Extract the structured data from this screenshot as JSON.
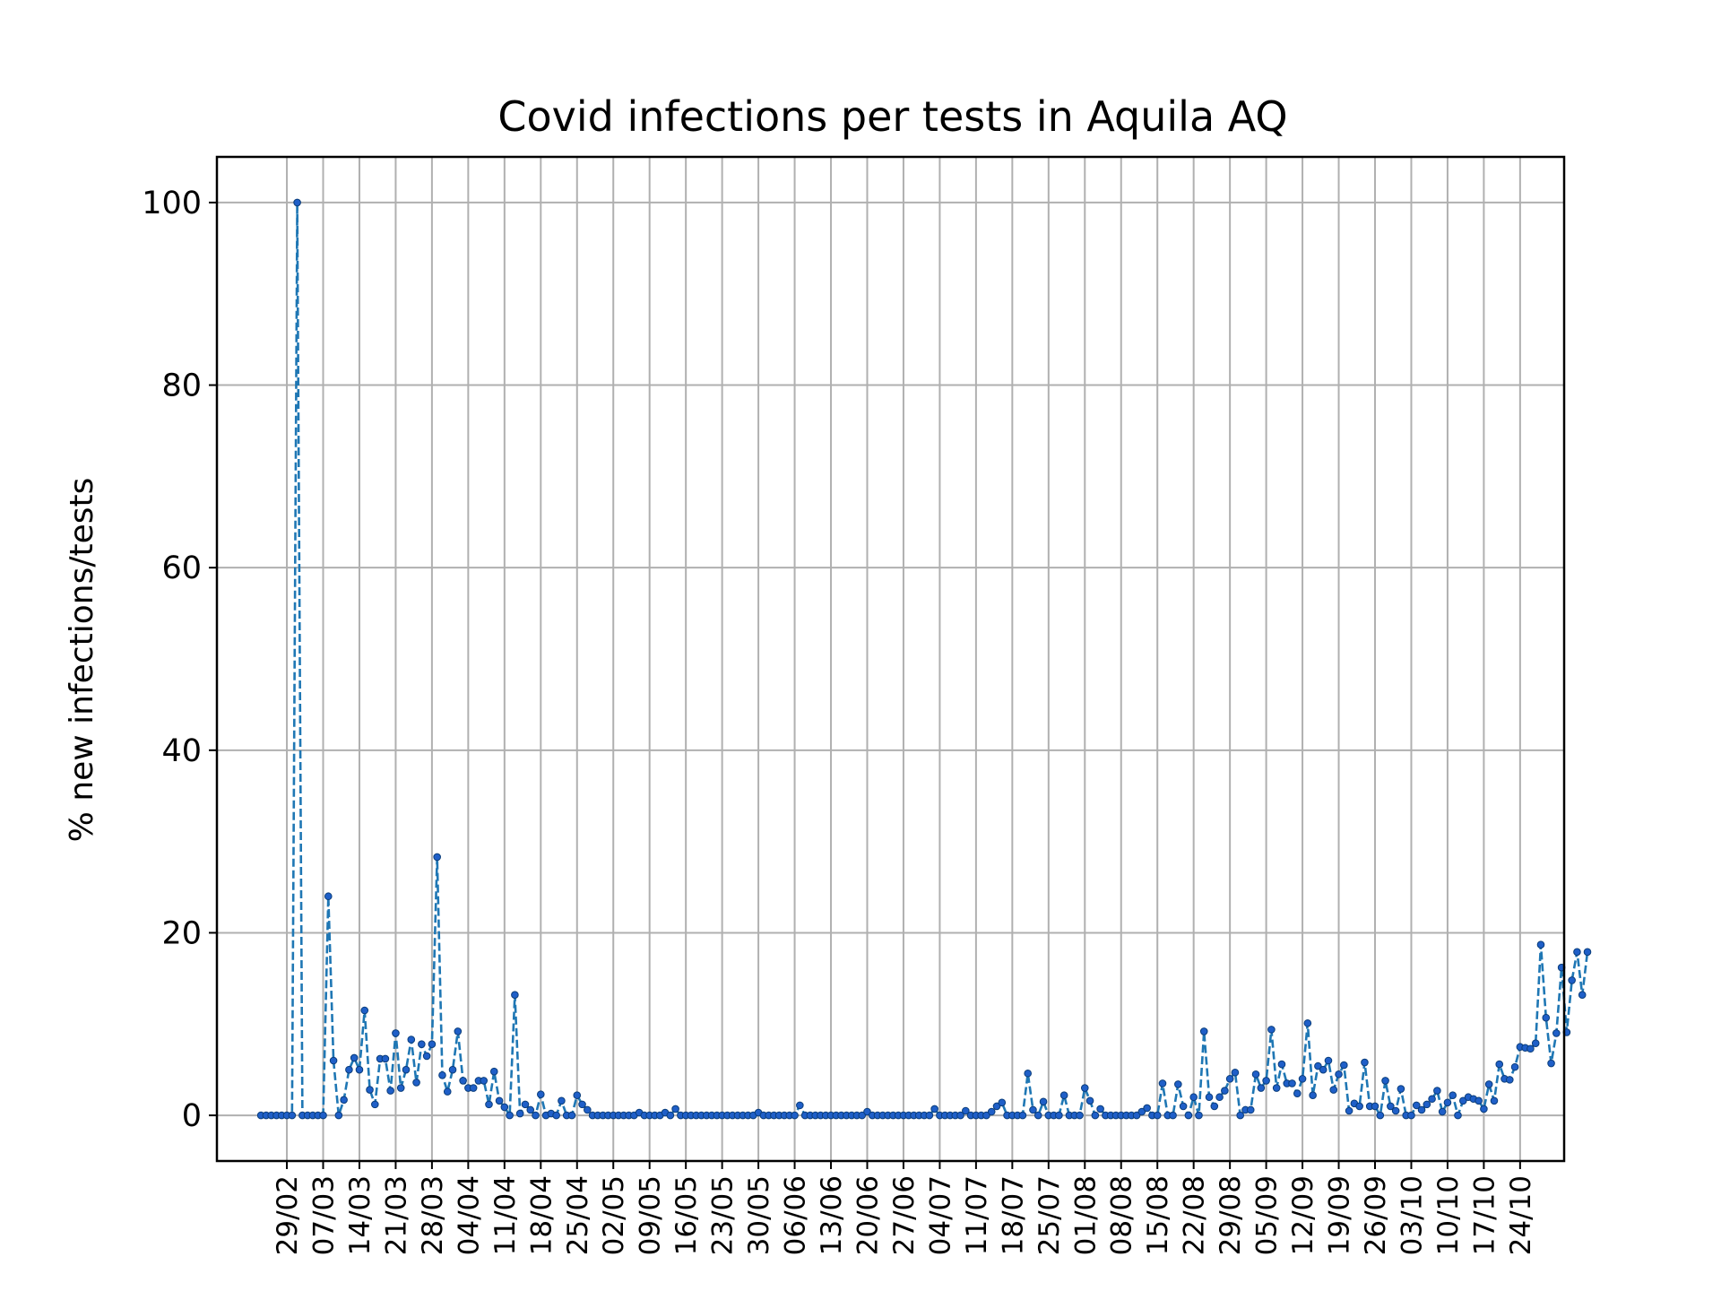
{
  "chart_data": {
    "type": "line",
    "title": "Covid infections per tests in Aquila AQ",
    "xlabel": "",
    "ylabel": "% new infections/tests",
    "ylim": [
      -5,
      105
    ],
    "yticks": [
      0,
      20,
      40,
      60,
      80,
      100
    ],
    "grid": true,
    "line_style": "dashed",
    "marker": "dot",
    "colors": {
      "line": "#1f77b4",
      "marker": "#1f5fc8",
      "grid": "#b0b0b0"
    },
    "x_start_date": "2020-02-24",
    "x_end_date": "2020-10-24",
    "xticks": [
      "29/02",
      "07/03",
      "14/03",
      "21/03",
      "28/03",
      "04/04",
      "11/04",
      "18/04",
      "25/04",
      "02/05",
      "09/05",
      "16/05",
      "23/05",
      "30/05",
      "06/06",
      "13/06",
      "20/06",
      "27/06",
      "04/07",
      "11/07",
      "18/07",
      "25/07",
      "01/08",
      "08/08",
      "15/08",
      "22/08",
      "29/08",
      "05/09",
      "12/09",
      "19/09",
      "26/09",
      "03/10",
      "10/10",
      "17/10",
      "24/10"
    ],
    "series": [
      {
        "name": "",
        "values": [
          0,
          0,
          0,
          0,
          0,
          0,
          0,
          100,
          0,
          0,
          0,
          0,
          0,
          24,
          6,
          0,
          1.7,
          5,
          6.3,
          5,
          11.5,
          2.8,
          1.2,
          6.2,
          6.2,
          2.7,
          9,
          3,
          5,
          8.3,
          3.6,
          7.8,
          6.5,
          7.8,
          28.3,
          4.4,
          2.6,
          5,
          9.2,
          3.8,
          3,
          3,
          3.8,
          3.8,
          1.2,
          4.8,
          1.6,
          0.9,
          0,
          13.2,
          0.2,
          1.2,
          0.6,
          0,
          2.3,
          0,
          0.2,
          0,
          1.6,
          0,
          0,
          2.2,
          1.2,
          0.6,
          0,
          0,
          0,
          0,
          0,
          0,
          0,
          0,
          0,
          0.3,
          0,
          0,
          0,
          0,
          0.3,
          0,
          0.7,
          0,
          0,
          0,
          0,
          0,
          0,
          0,
          0,
          0,
          0,
          0,
          0,
          0,
          0,
          0,
          0.3,
          0,
          0,
          0,
          0,
          0,
          0,
          0,
          1.1,
          0,
          0,
          0,
          0,
          0,
          0,
          0,
          0,
          0,
          0,
          0,
          0,
          0.4,
          0,
          0,
          0,
          0,
          0,
          0,
          0,
          0,
          0,
          0,
          0,
          0,
          0.7,
          0,
          0,
          0,
          0,
          0,
          0.5,
          0,
          0,
          0,
          0,
          0.4,
          1,
          1.4,
          0,
          0,
          0,
          0,
          4.6,
          0.6,
          0,
          1.5,
          0,
          0,
          0,
          2.2,
          0,
          0,
          0,
          3,
          1.6,
          0,
          0.7,
          0,
          0,
          0,
          0,
          0,
          0,
          0,
          0.4,
          0.8,
          0,
          0,
          3.5,
          0,
          0,
          3.4,
          1,
          0,
          2,
          0,
          9.2,
          2,
          1,
          2,
          2.7,
          4,
          4.7,
          0,
          0.6,
          0.6,
          4.5,
          3,
          3.8,
          9.4,
          3,
          5.6,
          3.5,
          3.5,
          2.4,
          4,
          10.1,
          2.2,
          5.4,
          5,
          6,
          2.8,
          4.5,
          5.5,
          0.5,
          1.3,
          1,
          5.8,
          1,
          1,
          0,
          3.8,
          1,
          0.5,
          2.9,
          0,
          0,
          1.1,
          0.6,
          1.2,
          1.8,
          2.7,
          0.4,
          1.4,
          2.2,
          0,
          1.6,
          2,
          1.8,
          1.6,
          0.7,
          3.4,
          1.6,
          5.6,
          4,
          3.9,
          5.3,
          7.5,
          7.4,
          7.3,
          7.9,
          18.7,
          10.7,
          5.7,
          9,
          16.2,
          9.1,
          14.8,
          17.9,
          13.2,
          17.9
        ]
      }
    ]
  }
}
